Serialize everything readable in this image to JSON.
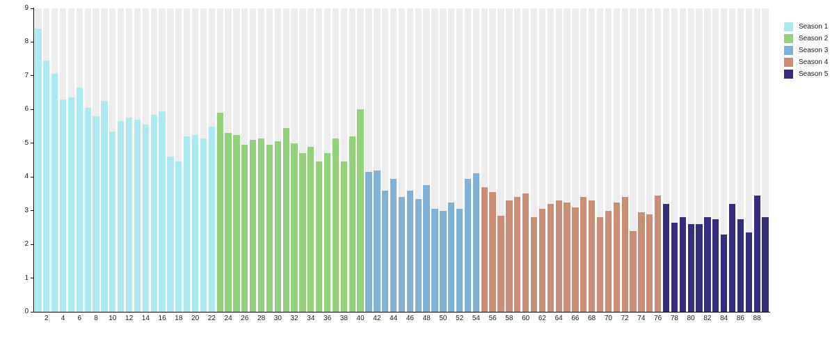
{
  "chart_data": {
    "type": "bar",
    "title": "",
    "xlabel": "",
    "ylabel": "",
    "ylim": [
      0,
      9
    ],
    "grid": false,
    "legend_position": "top-right",
    "track_color": "#ececec",
    "axis_color": "#000000",
    "ytick_labels": [
      "0",
      "1",
      "2",
      "3",
      "4",
      "5",
      "6",
      "7",
      "8",
      "9"
    ],
    "xtick_labels": [
      "2",
      "4",
      "6",
      "8",
      "10",
      "12",
      "14",
      "16",
      "18",
      "20",
      "22",
      "24",
      "26",
      "28",
      "30",
      "32",
      "34",
      "36",
      "38",
      "40",
      "42",
      "44",
      "46",
      "48",
      "50",
      "52",
      "54",
      "56",
      "58",
      "60",
      "62",
      "64",
      "66",
      "68",
      "70",
      "72",
      "74",
      "76",
      "78",
      "80",
      "82",
      "84",
      "86",
      "88"
    ],
    "seasons": [
      {
        "label": "Season 1",
        "color": "#aee9f1",
        "start_episode": 1,
        "values": [
          8.4,
          7.45,
          7.05,
          6.3,
          6.35,
          6.65,
          6.05,
          5.8,
          6.25,
          5.35,
          5.65,
          5.75,
          5.7,
          5.55,
          5.85,
          5.95,
          4.6,
          4.45,
          5.2,
          5.25,
          5.15,
          5.5
        ]
      },
      {
        "label": "Season 2",
        "color": "#94d17d",
        "start_episode": 23,
        "values": [
          5.9,
          5.3,
          5.25,
          4.95,
          5.1,
          5.15,
          4.95,
          5.05,
          5.45,
          5.0,
          4.7,
          4.9,
          4.45,
          4.7,
          5.15,
          4.45,
          5.2,
          6.0
        ]
      },
      {
        "label": "Season 3",
        "color": "#82b1d7",
        "start_episode": 41,
        "values": [
          4.15,
          4.2,
          3.6,
          3.95,
          3.4,
          3.6,
          3.35,
          3.75,
          3.05,
          3.0,
          3.25,
          3.05,
          3.95,
          4.1
        ]
      },
      {
        "label": "Season 4",
        "color": "#ca8e77",
        "start_episode": 55,
        "values": [
          3.7,
          3.55,
          2.85,
          3.3,
          3.4,
          3.5,
          2.8,
          3.05,
          3.2,
          3.3,
          3.25,
          3.1,
          3.4,
          3.3,
          2.8,
          3.0,
          3.25,
          3.4,
          2.4,
          2.95,
          2.9,
          3.45
        ]
      },
      {
        "label": "Season 5",
        "color": "#362e7d",
        "start_episode": 77,
        "values": [
          3.2,
          2.65,
          2.8,
          2.6,
          2.6,
          2.8,
          2.75,
          2.3,
          3.2,
          2.75,
          2.35,
          3.45,
          2.8
        ]
      }
    ]
  }
}
